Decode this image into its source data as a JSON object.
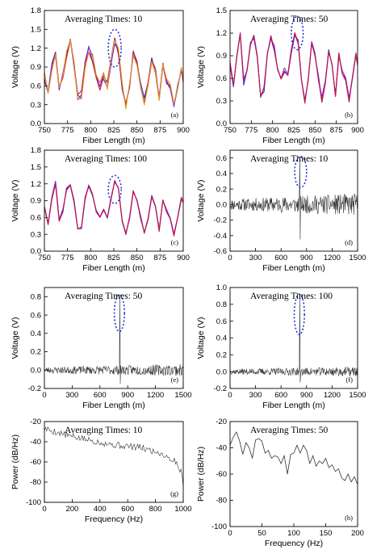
{
  "chart_data": [
    {
      "type": "line",
      "panel_label": "(a)",
      "annotation": "Averaging Times: 10",
      "xlabel": "Fiber Length (m)",
      "ylabel": "Voltage (V)",
      "xlim": [
        750,
        900
      ],
      "ylim": [
        0,
        1.8
      ],
      "xticks": [
        750,
        775,
        800,
        825,
        850,
        875,
        900
      ],
      "yticks": [
        0.0,
        0.3,
        0.6,
        0.9,
        1.2,
        1.5,
        1.8
      ],
      "ytick_decimals": 1,
      "style": "overlaid_traces",
      "trace_colors": [
        "#2a2ad8",
        "#8a2be2",
        "#c0143c",
        "#e0a020"
      ],
      "trace_spread": 0.07,
      "highlight": {
        "x": 826,
        "y": 1.2,
        "rx": 7,
        "ry": 0.3
      },
      "series": [
        {
          "x": [
            750,
            754,
            758,
            762,
            766,
            770,
            774,
            778,
            782,
            786,
            790,
            794,
            798,
            802,
            806,
            810,
            814,
            818,
            822,
            826,
            830,
            834,
            838,
            842,
            846,
            850,
            854,
            858,
            862,
            866,
            870,
            874,
            878,
            882,
            886,
            890,
            894,
            898,
            900
          ],
          "values": [
            0.75,
            0.5,
            0.9,
            1.1,
            0.55,
            0.75,
            1.1,
            1.35,
            0.95,
            0.42,
            0.45,
            0.95,
            1.2,
            1.05,
            0.72,
            0.6,
            0.75,
            0.6,
            0.98,
            1.3,
            1.15,
            0.6,
            0.3,
            0.62,
            1.1,
            0.95,
            0.6,
            0.35,
            0.6,
            0.98,
            0.85,
            0.38,
            0.95,
            0.7,
            0.6,
            0.3,
            0.6,
            0.85,
            0.7
          ]
        }
      ]
    },
    {
      "type": "line",
      "panel_label": "(b)",
      "annotation": "Averaging Times: 50",
      "xlabel": "Fiber Length (m)",
      "ylabel": "Voltage (V)",
      "xlim": [
        750,
        900
      ],
      "ylim": [
        0,
        1.5
      ],
      "xticks": [
        750,
        775,
        800,
        825,
        850,
        875,
        900
      ],
      "yticks": [
        0.0,
        0.3,
        0.6,
        0.9,
        1.2,
        1.5
      ],
      "ytick_decimals": 1,
      "style": "overlaid_traces",
      "trace_colors": [
        "#2a2ad8",
        "#8a2be2",
        "#c0143c"
      ],
      "trace_spread": 0.04,
      "highlight": {
        "x": 829,
        "y": 1.2,
        "rx": 7,
        "ry": 0.22
      },
      "series": [
        {
          "x": [
            750,
            754,
            758,
            762,
            766,
            770,
            774,
            778,
            782,
            786,
            790,
            794,
            798,
            802,
            806,
            810,
            814,
            818,
            822,
            826,
            830,
            834,
            838,
            842,
            846,
            850,
            854,
            858,
            862,
            866,
            870,
            874,
            878,
            882,
            886,
            890,
            894,
            898,
            900
          ],
          "values": [
            0.8,
            0.5,
            0.92,
            1.2,
            0.55,
            0.72,
            1.08,
            1.15,
            0.9,
            0.38,
            0.45,
            0.95,
            1.15,
            1.0,
            0.7,
            0.62,
            0.72,
            0.62,
            0.95,
            1.18,
            1.1,
            0.55,
            0.3,
            0.6,
            1.05,
            0.9,
            0.6,
            0.32,
            0.55,
            0.95,
            0.8,
            0.38,
            0.9,
            0.7,
            0.58,
            0.3,
            0.62,
            0.92,
            0.75
          ]
        }
      ]
    },
    {
      "type": "line",
      "panel_label": "(c)",
      "annotation": "Averaging Times: 100",
      "xlabel": "Fiber Length (m)",
      "ylabel": "Voltage (V)",
      "xlim": [
        750,
        900
      ],
      "ylim": [
        0,
        1.8
      ],
      "xticks": [
        750,
        775,
        800,
        825,
        850,
        875,
        900
      ],
      "yticks": [
        0.0,
        0.3,
        0.6,
        0.9,
        1.2,
        1.5,
        1.8
      ],
      "ytick_decimals": 1,
      "style": "overlaid_traces",
      "trace_colors": [
        "#2a2ad8",
        "#8a2be2",
        "#c0143c"
      ],
      "trace_spread": 0.03,
      "highlight": {
        "x": 826,
        "y": 1.1,
        "rx": 7,
        "ry": 0.25
      },
      "series": [
        {
          "x": [
            750,
            754,
            758,
            762,
            766,
            770,
            774,
            778,
            782,
            786,
            790,
            794,
            798,
            802,
            806,
            810,
            814,
            818,
            822,
            826,
            830,
            834,
            838,
            842,
            846,
            850,
            854,
            858,
            862,
            866,
            870,
            874,
            878,
            882,
            886,
            890,
            894,
            898,
            900
          ],
          "values": [
            0.8,
            0.5,
            0.95,
            1.22,
            0.55,
            0.72,
            1.1,
            1.2,
            0.9,
            0.38,
            0.42,
            0.95,
            1.18,
            1.0,
            0.7,
            0.62,
            0.72,
            0.6,
            0.95,
            1.25,
            1.12,
            0.55,
            0.3,
            0.6,
            1.08,
            0.92,
            0.6,
            0.32,
            0.55,
            0.98,
            0.82,
            0.38,
            0.92,
            0.72,
            0.6,
            0.3,
            0.6,
            0.95,
            0.85
          ]
        }
      ]
    },
    {
      "type": "line",
      "panel_label": "(d)",
      "annotation": "Averaging Times: 10",
      "xlabel": "Fiber Length (m)",
      "ylabel": "Voltage (V)",
      "xlim": [
        0,
        1500
      ],
      "ylim": [
        -0.6,
        0.7
      ],
      "xticks": [
        0,
        300,
        600,
        900,
        1200,
        1500
      ],
      "yticks": [
        -0.6,
        -0.4,
        -0.2,
        0.0,
        0.2,
        0.4,
        0.6
      ],
      "ytick_decimals": 1,
      "style": "noise",
      "trace_color": "#333333",
      "highlight": {
        "x": 830,
        "y": 0.42,
        "rx": 70,
        "ry": 0.2
      },
      "noise": {
        "amplitude": 0.12,
        "step": 5,
        "envelope": [
          [
            0,
            0.6
          ],
          [
            1500,
            1.2
          ]
        ],
        "spikes": [
          {
            "x": 820,
            "y": 0.62
          },
          {
            "x": 825,
            "y": -0.45
          }
        ],
        "seed": 11
      }
    },
    {
      "type": "line",
      "panel_label": "(e)",
      "annotation": "Averaging Times: 50",
      "xlabel": "Fiber Length (m)",
      "ylabel": "Voltage (V)",
      "xlim": [
        0,
        1500
      ],
      "ylim": [
        -0.2,
        0.9
      ],
      "xticks": [
        0,
        300,
        600,
        900,
        1200,
        1500
      ],
      "yticks": [
        -0.2,
        0.0,
        0.2,
        0.4,
        0.6,
        0.8
      ],
      "ytick_decimals": 1,
      "style": "noise",
      "trace_color": "#333333",
      "highlight": {
        "x": 810,
        "y": 0.62,
        "rx": 55,
        "ry": 0.2
      },
      "noise": {
        "amplitude": 0.05,
        "step": 5,
        "envelope": [
          [
            0,
            0.7
          ],
          [
            1500,
            1.3
          ]
        ],
        "spikes": [
          {
            "x": 815,
            "y": 0.8
          },
          {
            "x": 820,
            "y": -0.15
          }
        ],
        "seed": 23
      }
    },
    {
      "type": "line",
      "panel_label": "(f)",
      "annotation": "Averaging Times: 100",
      "xlabel": "Fiber Length (m)",
      "ylabel": "Voltage (V)",
      "xlim": [
        0,
        1500
      ],
      "ylim": [
        -0.2,
        1.0
      ],
      "xticks": [
        0,
        300,
        600,
        900,
        1200,
        1500
      ],
      "yticks": [
        -0.2,
        0.0,
        0.2,
        0.4,
        0.6,
        0.8,
        1.0
      ],
      "ytick_decimals": 1,
      "style": "noise",
      "trace_color": "#333333",
      "highlight": {
        "x": 815,
        "y": 0.68,
        "rx": 60,
        "ry": 0.24
      },
      "noise": {
        "amplitude": 0.045,
        "step": 5,
        "envelope": [
          [
            0,
            0.7
          ],
          [
            1500,
            1.3
          ]
        ],
        "spikes": [
          {
            "x": 820,
            "y": 0.92
          },
          {
            "x": 825,
            "y": -0.13
          }
        ],
        "seed": 37
      }
    },
    {
      "type": "line",
      "panel_label": "(g)",
      "annotation": "Averaging Times: 10",
      "xlabel": "Frequency (Hz)",
      "ylabel": "Power (dB/Hz)",
      "xlim": [
        0,
        1000
      ],
      "ylim": [
        -100,
        -20
      ],
      "xticks": [
        0,
        200,
        400,
        600,
        800,
        1000
      ],
      "yticks": [
        -100,
        -80,
        -60,
        -40,
        -20
      ],
      "ytick_decimals": 0,
      "style": "noise",
      "trace_color": "#333333",
      "noise": {
        "amplitude": 3.5,
        "step": 8,
        "baseline": [
          [
            0,
            -27
          ],
          [
            200,
            -35
          ],
          [
            500,
            -43
          ],
          [
            700,
            -46
          ],
          [
            850,
            -52
          ],
          [
            950,
            -60
          ],
          [
            990,
            -72
          ],
          [
            1000,
            -82
          ]
        ],
        "envelope": [
          [
            0,
            1
          ],
          [
            1000,
            1
          ]
        ],
        "seed": 5
      }
    },
    {
      "type": "line",
      "panel_label": "(h)",
      "annotation": "Averaging Times: 50",
      "xlabel": "Frequency (Hz)",
      "ylabel": "Power (dB/Hz)",
      "xlim": [
        0,
        200
      ],
      "ylim": [
        -100,
        -20
      ],
      "xticks": [
        0,
        50,
        100,
        150,
        200
      ],
      "yticks": [
        -100,
        -80,
        -60,
        -40,
        -20
      ],
      "ytick_decimals": 0,
      "style": "plain",
      "trace_color": "#333333",
      "series": [
        {
          "x": [
            0,
            5,
            10,
            15,
            20,
            25,
            30,
            35,
            40,
            45,
            50,
            55,
            60,
            65,
            70,
            75,
            80,
            85,
            90,
            95,
            100,
            105,
            110,
            115,
            120,
            125,
            130,
            135,
            140,
            145,
            150,
            155,
            160,
            165,
            170,
            175,
            180,
            185,
            190,
            195,
            200
          ],
          "values": [
            -38,
            -32,
            -28,
            -35,
            -45,
            -36,
            -40,
            -48,
            -34,
            -33,
            -35,
            -44,
            -42,
            -48,
            -46,
            -47,
            -52,
            -46,
            -60,
            -45,
            -44,
            -38,
            -44,
            -38,
            -42,
            -52,
            -46,
            -54,
            -50,
            -52,
            -48,
            -55,
            -53,
            -58,
            -56,
            -63,
            -65,
            -60,
            -66,
            -62,
            -68
          ]
        }
      ]
    }
  ]
}
